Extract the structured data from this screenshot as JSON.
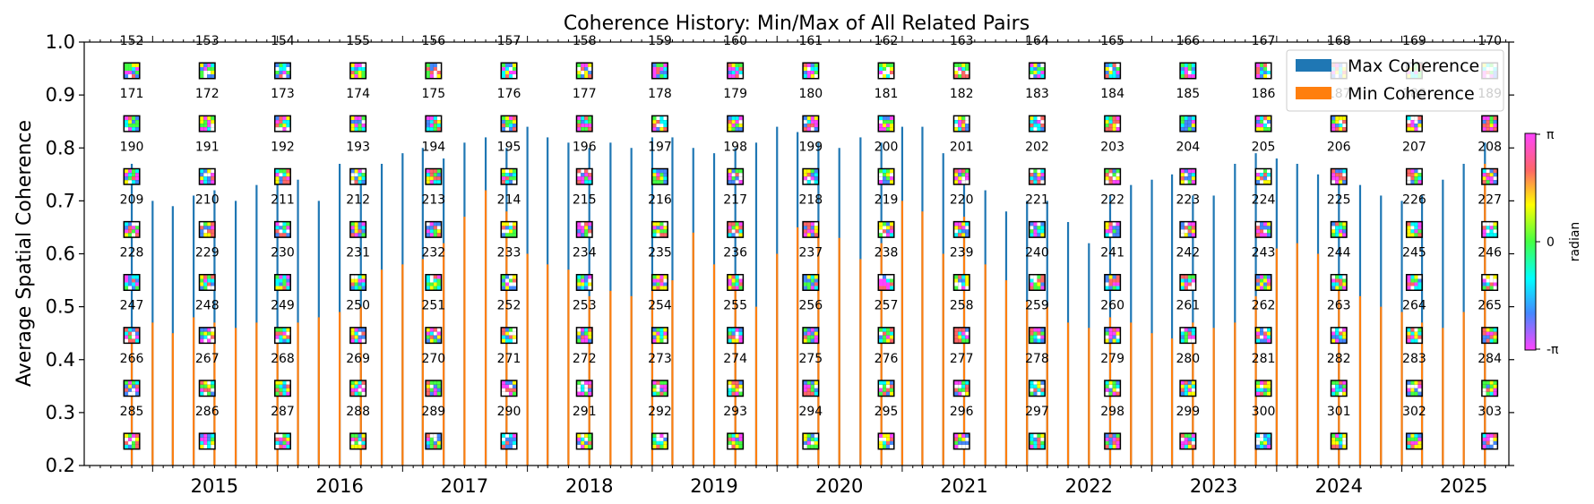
{
  "chart_data": {
    "type": "bar",
    "title": "Coherence History: Min/Max of All Related Pairs",
    "ylabel": "Average Spatial Coherence",
    "xlabel": "",
    "ylim": [
      0.2,
      1.0
    ],
    "xlim": [
      "2014-06-15",
      "2025-11-10"
    ],
    "yticks": [
      "0.2",
      "0.3",
      "0.4",
      "0.5",
      "0.6",
      "0.7",
      "0.8",
      "0.9",
      "1.0"
    ],
    "xticks": [
      "2015",
      "2016",
      "2017",
      "2018",
      "2019",
      "2020",
      "2021",
      "2022",
      "2023",
      "2024",
      "2025"
    ],
    "legend": {
      "position": "top-right",
      "entries": [
        {
          "name": "Max Coherence",
          "color": "#1f77b4"
        },
        {
          "name": "Min Coherence",
          "color": "#ff7f0e"
        }
      ]
    },
    "colorbar": {
      "label": "radian",
      "ticks": [
        "π",
        "0",
        "-π"
      ],
      "colormap": "cyclic-hsv"
    },
    "thumbnails": {
      "first_index": 152,
      "last_index": 303,
      "columns": 19,
      "rows": 8,
      "first_date": "2014-11-01",
      "last_date": "2025-09-15"
    },
    "series": [
      {
        "name": "Max Coherence",
        "color": "#1f77b4",
        "x": [
          "2014-11-01",
          "2015-01-01",
          "2015-03-01",
          "2015-05-01",
          "2015-07-01",
          "2015-09-01",
          "2015-11-01",
          "2016-01-01",
          "2016-03-01",
          "2016-05-01",
          "2016-07-01",
          "2016-09-01",
          "2016-11-01",
          "2017-01-01",
          "2017-03-01",
          "2017-05-01",
          "2017-07-01",
          "2017-09-01",
          "2017-11-01",
          "2018-01-01",
          "2018-03-01",
          "2018-05-01",
          "2018-07-01",
          "2018-09-01",
          "2018-11-01",
          "2019-01-01",
          "2019-03-01",
          "2019-05-01",
          "2019-07-01",
          "2019-09-01",
          "2019-11-01",
          "2020-01-01",
          "2020-03-01",
          "2020-05-01",
          "2020-07-01",
          "2020-09-01",
          "2020-11-01",
          "2021-01-01",
          "2021-03-01",
          "2021-05-01",
          "2021-07-01",
          "2021-09-01",
          "2021-11-01",
          "2022-01-01",
          "2022-03-01",
          "2022-05-01",
          "2022-07-01",
          "2022-09-01",
          "2022-11-01",
          "2023-01-01",
          "2023-03-01",
          "2023-05-01",
          "2023-07-01",
          "2023-09-01",
          "2023-11-01",
          "2024-01-01",
          "2024-03-01",
          "2024-05-01",
          "2024-07-01",
          "2024-09-01",
          "2024-11-01",
          "2025-01-01",
          "2025-03-01",
          "2025-05-01",
          "2025-07-01",
          "2025-09-01"
        ],
        "values": [
          0.77,
          0.7,
          0.69,
          0.71,
          0.72,
          0.7,
          0.73,
          0.76,
          0.74,
          0.7,
          0.77,
          0.75,
          0.77,
          0.79,
          0.8,
          0.78,
          0.81,
          0.82,
          0.8,
          0.84,
          0.82,
          0.81,
          0.8,
          0.81,
          0.8,
          0.82,
          0.82,
          0.8,
          0.79,
          0.8,
          0.81,
          0.84,
          0.83,
          0.81,
          0.8,
          0.82,
          0.81,
          0.84,
          0.84,
          0.79,
          0.74,
          0.72,
          0.68,
          0.7,
          0.7,
          0.66,
          0.62,
          0.71,
          0.73,
          0.74,
          0.75,
          0.71,
          0.71,
          0.77,
          0.79,
          0.78,
          0.77,
          0.75,
          0.76,
          0.73,
          0.71,
          0.7,
          0.71,
          0.74,
          0.77,
          0.81
        ]
      },
      {
        "name": "Min Coherence",
        "color": "#ff7f0e",
        "x": [
          "2014-11-01",
          "2015-01-01",
          "2015-03-01",
          "2015-05-01",
          "2015-07-01",
          "2015-09-01",
          "2015-11-01",
          "2016-01-01",
          "2016-03-01",
          "2016-05-01",
          "2016-07-01",
          "2016-09-01",
          "2016-11-01",
          "2017-01-01",
          "2017-03-01",
          "2017-05-01",
          "2017-07-01",
          "2017-09-01",
          "2017-11-01",
          "2018-01-01",
          "2018-03-01",
          "2018-05-01",
          "2018-07-01",
          "2018-09-01",
          "2018-11-01",
          "2019-01-01",
          "2019-03-01",
          "2019-05-01",
          "2019-07-01",
          "2019-09-01",
          "2019-11-01",
          "2020-01-01",
          "2020-03-01",
          "2020-05-01",
          "2020-07-01",
          "2020-09-01",
          "2020-11-01",
          "2021-01-01",
          "2021-03-01",
          "2021-05-01",
          "2021-07-01",
          "2021-09-01",
          "2021-11-01",
          "2022-01-01",
          "2022-03-01",
          "2022-05-01",
          "2022-07-01",
          "2022-09-01",
          "2022-11-01",
          "2023-01-01",
          "2023-03-01",
          "2023-05-01",
          "2023-07-01",
          "2023-09-01",
          "2023-11-01",
          "2024-01-01",
          "2024-03-01",
          "2024-05-01",
          "2024-07-01",
          "2024-09-01",
          "2024-11-01",
          "2025-01-01",
          "2025-03-01",
          "2025-05-01",
          "2025-07-01",
          "2025-09-01"
        ],
        "values": [
          0.45,
          0.47,
          0.45,
          0.48,
          0.47,
          0.46,
          0.47,
          0.46,
          0.47,
          0.48,
          0.49,
          0.5,
          0.57,
          0.58,
          0.59,
          0.62,
          0.67,
          0.72,
          0.68,
          0.6,
          0.58,
          0.57,
          0.52,
          0.53,
          0.52,
          0.53,
          0.55,
          0.64,
          0.58,
          0.54,
          0.5,
          0.6,
          0.65,
          0.66,
          0.63,
          0.59,
          0.62,
          0.7,
          0.68,
          0.6,
          0.67,
          0.58,
          0.55,
          0.51,
          0.5,
          0.47,
          0.46,
          0.48,
          0.47,
          0.45,
          0.44,
          0.47,
          0.46,
          0.47,
          0.52,
          0.61,
          0.62,
          0.6,
          0.53,
          0.52,
          0.5,
          0.49,
          0.47,
          0.46,
          0.49,
          0.77
        ]
      }
    ]
  }
}
